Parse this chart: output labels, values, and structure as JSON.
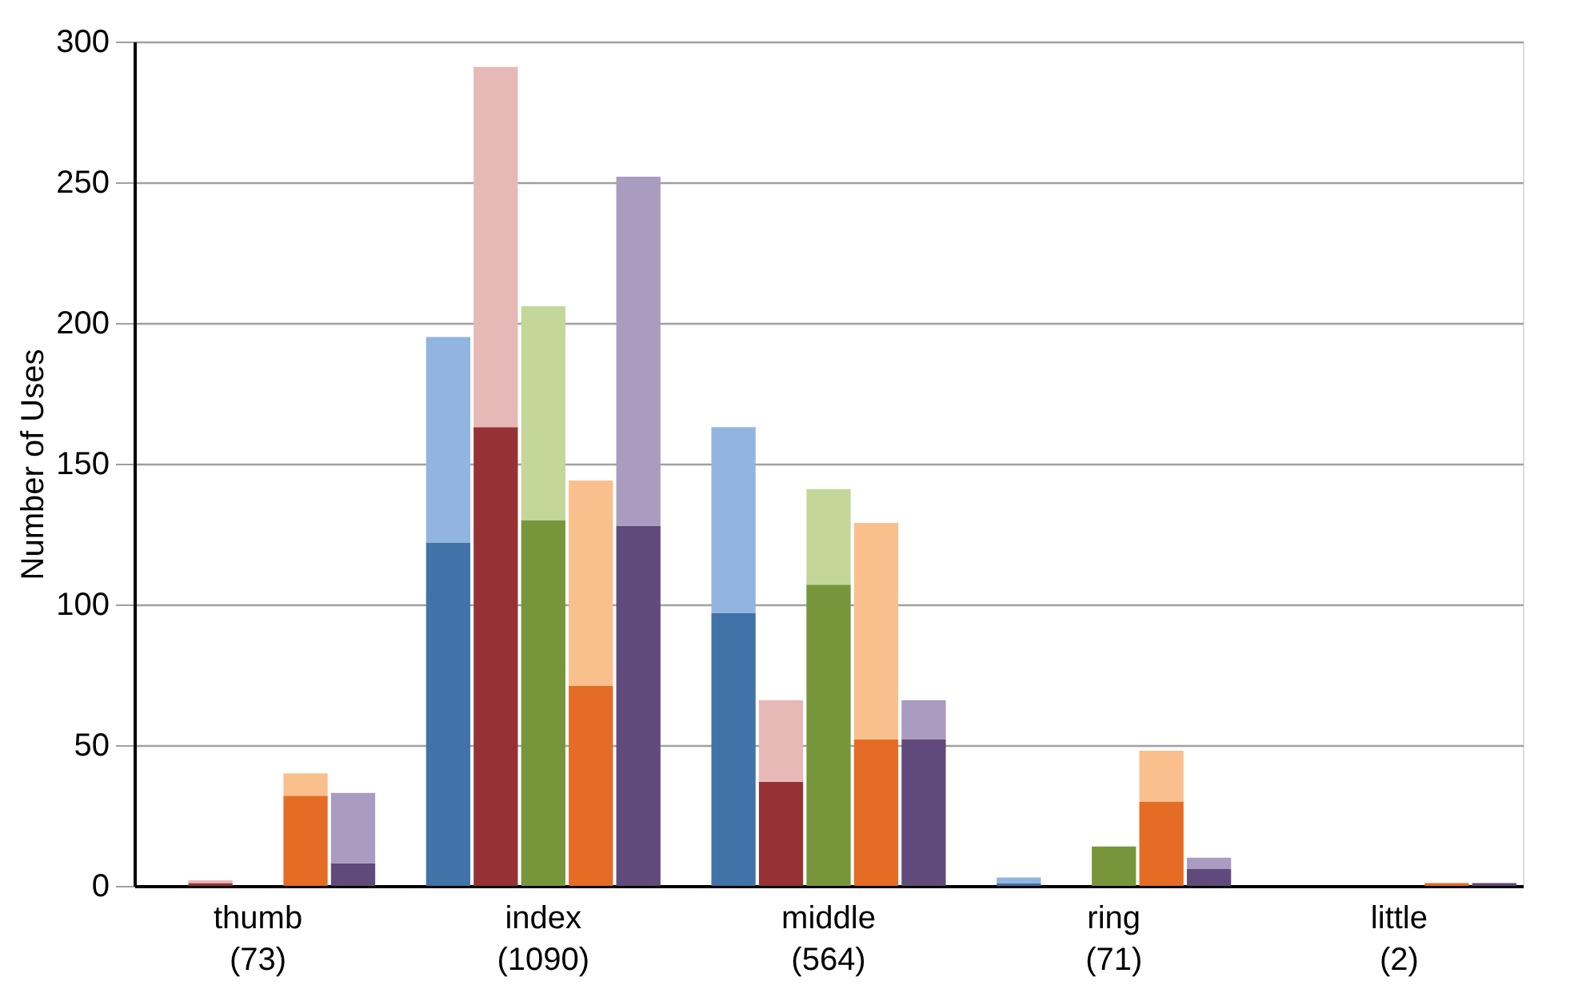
{
  "chart_data": {
    "type": "bar",
    "ylabel": "Number of Uses",
    "categories": [
      null,
      null,
      "thumb\n(73)",
      null,
      null,
      null,
      null,
      null,
      "index\n(1090)",
      null,
      null,
      null,
      null,
      null,
      "middle\n(564)",
      null,
      null,
      null,
      null,
      null,
      "ring\n(71)",
      null,
      null,
      null,
      null,
      null,
      "little\n(2)",
      null,
      null
    ],
    "stacked": true,
    "series": [
      {
        "values": [
          0,
          1,
          0,
          32,
          8,
          null,
          122,
          163,
          130,
          71,
          128,
          null,
          97,
          37,
          107,
          52,
          52,
          null,
          1,
          0,
          14,
          30,
          6,
          null,
          0,
          0,
          0,
          1,
          1
        ],
        "colors": [
          "#4273a8",
          "#963235",
          "#77963b",
          "#e46c24",
          "#604a7b",
          null,
          "#4273a8",
          "#963235",
          "#77963b",
          "#e46c24",
          "#604a7b",
          null,
          "#4273a8",
          "#963235",
          "#77963b",
          "#e46c24",
          "#604a7b",
          null,
          "#4273a8",
          "#963235",
          "#77963b",
          "#e46c24",
          "#604a7b",
          null,
          "#4273a8",
          "#963235",
          "#77963b",
          "#e46c24",
          "#604a7b"
        ]
      },
      {
        "values": [
          0,
          1,
          0,
          8,
          25,
          null,
          73,
          128,
          76,
          73,
          124,
          null,
          66,
          29,
          34,
          77,
          14,
          null,
          2,
          0,
          0,
          18,
          4,
          null,
          0,
          0,
          0,
          0,
          0
        ],
        "colors": [
          "#92b5e0",
          "#e6b9b7",
          "#c4d79b",
          "#f9c08e",
          "#aa9bc0",
          null,
          "#92b5e0",
          "#e6b9b7",
          "#c4d79b",
          "#f9c08e",
          "#aa9bc0",
          null,
          "#92b5e0",
          "#e6b9b7",
          "#c4d79b",
          "#f9c08e",
          "#aa9bc0",
          null,
          "#92b5e0",
          "#e6b9b7",
          "#c4d79b",
          "#f9c08e",
          "#aa9bc0",
          null,
          "#92b5e0",
          "#e6b9b7",
          "#c4d79b",
          "#f9c08e",
          "#aa9bc0"
        ]
      }
    ],
    "ylim": [
      0,
      300
    ],
    "yticks": [
      0,
      50,
      100,
      150,
      200,
      250,
      300
    ],
    "grid": "y"
  }
}
